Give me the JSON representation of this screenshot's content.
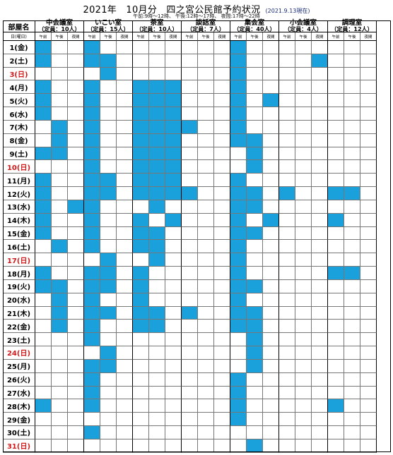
{
  "header": {
    "title": "2021年　10月分　四之宮公民館予約状況",
    "as_of": "(2021.9.13現在)",
    "time_note": "午前:9時～12時、 午後:12時～17時、 夜間:17時～22時"
  },
  "corner": {
    "label": "部屋名",
    "sub_label": "日(曜日)"
  },
  "periods": [
    "午前",
    "午後",
    "夜間"
  ],
  "rooms": [
    {
      "key": "chukaigi",
      "name": "中会議室",
      "capacity": "（定員：10人）"
    },
    {
      "key": "ikoi",
      "name": "いこい室",
      "capacity": "（定員：15人）"
    },
    {
      "key": "chashitsu",
      "name": "茶室",
      "capacity": "（定員：10人）"
    },
    {
      "key": "danwa",
      "name": "談話室",
      "capacity": "（定員：7人）"
    },
    {
      "key": "shukai",
      "name": "集会室",
      "capacity": "（定員：40人）"
    },
    {
      "key": "shokaigi",
      "name": "小会議室",
      "capacity": "（定員：4人）"
    },
    {
      "key": "chori",
      "name": "調理室",
      "capacity": "（定員：12人）"
    }
  ],
  "days": [
    {
      "label": "1(金)",
      "sunday": false
    },
    {
      "label": "2(土)",
      "sunday": false
    },
    {
      "label": "3(日)",
      "sunday": true
    },
    {
      "label": "4(月)",
      "sunday": false
    },
    {
      "label": "5(火)",
      "sunday": false
    },
    {
      "label": "6(水)",
      "sunday": false
    },
    {
      "label": "7(木)",
      "sunday": false
    },
    {
      "label": "8(金)",
      "sunday": false
    },
    {
      "label": "9(土)",
      "sunday": false
    },
    {
      "label": "10(日)",
      "sunday": true
    },
    {
      "label": "11(月)",
      "sunday": false
    },
    {
      "label": "12(火)",
      "sunday": false
    },
    {
      "label": "13(水)",
      "sunday": false
    },
    {
      "label": "14(木)",
      "sunday": false
    },
    {
      "label": "15(金)",
      "sunday": false
    },
    {
      "label": "16(土)",
      "sunday": false
    },
    {
      "label": "17(日)",
      "sunday": true
    },
    {
      "label": "18(月)",
      "sunday": false
    },
    {
      "label": "19(火)",
      "sunday": false
    },
    {
      "label": "20(水)",
      "sunday": false
    },
    {
      "label": "21(木)",
      "sunday": false
    },
    {
      "label": "22(金)",
      "sunday": false
    },
    {
      "label": "23(土)",
      "sunday": false
    },
    {
      "label": "24(日)",
      "sunday": true
    },
    {
      "label": "25(月)",
      "sunday": false
    },
    {
      "label": "26(火)",
      "sunday": false
    },
    {
      "label": "27(水)",
      "sunday": false
    },
    {
      "label": "28(木)",
      "sunday": false
    },
    {
      "label": "29(金)",
      "sunday": false
    },
    {
      "label": "30(土)",
      "sunday": false
    },
    {
      "label": "31(日)",
      "sunday": true
    }
  ],
  "booked_color": "#1aa1dc",
  "sunday_color": "#d21a1a",
  "bookings": {
    "1": {
      "chukaigi": [
        1,
        0,
        0
      ],
      "ikoi": [
        1,
        0,
        0
      ],
      "chashitsu": [
        0,
        0,
        0
      ],
      "danwa": [
        0,
        0,
        0
      ],
      "shukai": [
        1,
        0,
        0
      ],
      "shokaigi": [
        0,
        0,
        0
      ],
      "chori": [
        0,
        0,
        0
      ]
    },
    "2": {
      "chukaigi": [
        1,
        0,
        0
      ],
      "ikoi": [
        1,
        1,
        0
      ],
      "chashitsu": [
        0,
        0,
        0
      ],
      "danwa": [
        0,
        0,
        0
      ],
      "shukai": [
        1,
        0,
        0
      ],
      "shokaigi": [
        0,
        0,
        1
      ],
      "chori": [
        0,
        0,
        0
      ]
    },
    "3": {
      "chukaigi": [
        0,
        0,
        0
      ],
      "ikoi": [
        0,
        1,
        0
      ],
      "chashitsu": [
        0,
        0,
        0
      ],
      "danwa": [
        0,
        0,
        0
      ],
      "shukai": [
        1,
        0,
        0
      ],
      "shokaigi": [
        0,
        0,
        0
      ],
      "chori": [
        0,
        0,
        0
      ]
    },
    "4": {
      "chukaigi": [
        1,
        0,
        0
      ],
      "ikoi": [
        1,
        0,
        0
      ],
      "chashitsu": [
        1,
        1,
        1
      ],
      "danwa": [
        0,
        0,
        0
      ],
      "shukai": [
        1,
        0,
        0
      ],
      "shokaigi": [
        0,
        0,
        0
      ],
      "chori": [
        0,
        0,
        0
      ]
    },
    "5": {
      "chukaigi": [
        1,
        0,
        0
      ],
      "ikoi": [
        1,
        0,
        0
      ],
      "chashitsu": [
        1,
        1,
        1
      ],
      "danwa": [
        0,
        0,
        0
      ],
      "shukai": [
        1,
        0,
        1
      ],
      "shokaigi": [
        0,
        0,
        0
      ],
      "chori": [
        0,
        0,
        0
      ]
    },
    "6": {
      "chukaigi": [
        1,
        0,
        0
      ],
      "ikoi": [
        1,
        0,
        0
      ],
      "chashitsu": [
        1,
        1,
        1
      ],
      "danwa": [
        0,
        0,
        0
      ],
      "shukai": [
        1,
        0,
        0
      ],
      "shokaigi": [
        0,
        0,
        0
      ],
      "chori": [
        0,
        0,
        0
      ]
    },
    "7": {
      "chukaigi": [
        0,
        1,
        0
      ],
      "ikoi": [
        1,
        0,
        0
      ],
      "chashitsu": [
        1,
        1,
        1
      ],
      "danwa": [
        1,
        0,
        0
      ],
      "shukai": [
        1,
        0,
        0
      ],
      "shokaigi": [
        0,
        0,
        0
      ],
      "chori": [
        0,
        0,
        0
      ]
    },
    "8": {
      "chukaigi": [
        0,
        1,
        0
      ],
      "ikoi": [
        1,
        0,
        0
      ],
      "chashitsu": [
        1,
        1,
        1
      ],
      "danwa": [
        0,
        0,
        0
      ],
      "shukai": [
        1,
        1,
        0
      ],
      "shokaigi": [
        0,
        0,
        0
      ],
      "chori": [
        0,
        0,
        0
      ]
    },
    "9": {
      "chukaigi": [
        1,
        1,
        0
      ],
      "ikoi": [
        1,
        0,
        0
      ],
      "chashitsu": [
        1,
        1,
        1
      ],
      "danwa": [
        0,
        0,
        0
      ],
      "shukai": [
        0,
        1,
        0
      ],
      "shokaigi": [
        0,
        0,
        0
      ],
      "chori": [
        0,
        0,
        0
      ]
    },
    "10": {
      "chukaigi": [
        0,
        0,
        0
      ],
      "ikoi": [
        1,
        0,
        0
      ],
      "chashitsu": [
        1,
        1,
        1
      ],
      "danwa": [
        0,
        0,
        0
      ],
      "shukai": [
        0,
        1,
        0
      ],
      "shokaigi": [
        0,
        0,
        0
      ],
      "chori": [
        0,
        0,
        0
      ]
    },
    "11": {
      "chukaigi": [
        1,
        0,
        0
      ],
      "ikoi": [
        1,
        1,
        0
      ],
      "chashitsu": [
        1,
        1,
        1
      ],
      "danwa": [
        0,
        0,
        0
      ],
      "shukai": [
        1,
        0,
        0
      ],
      "shokaigi": [
        0,
        0,
        0
      ],
      "chori": [
        0,
        0,
        0
      ]
    },
    "12": {
      "chukaigi": [
        1,
        0,
        0
      ],
      "ikoi": [
        1,
        1,
        0
      ],
      "chashitsu": [
        1,
        1,
        1
      ],
      "danwa": [
        1,
        0,
        0
      ],
      "shukai": [
        1,
        1,
        0
      ],
      "shokaigi": [
        1,
        0,
        0
      ],
      "chori": [
        1,
        1,
        0
      ]
    },
    "13": {
      "chukaigi": [
        1,
        0,
        1
      ],
      "ikoi": [
        1,
        0,
        0
      ],
      "chashitsu": [
        0,
        1,
        0
      ],
      "danwa": [
        0,
        0,
        0
      ],
      "shukai": [
        1,
        1,
        0
      ],
      "shokaigi": [
        0,
        0,
        0
      ],
      "chori": [
        0,
        0,
        0
      ]
    },
    "14": {
      "chukaigi": [
        1,
        0,
        0
      ],
      "ikoi": [
        1,
        0,
        0
      ],
      "chashitsu": [
        1,
        0,
        1
      ],
      "danwa": [
        0,
        0,
        0
      ],
      "shukai": [
        1,
        0,
        1
      ],
      "shokaigi": [
        0,
        0,
        0
      ],
      "chori": [
        1,
        0,
        0
      ]
    },
    "15": {
      "chukaigi": [
        1,
        0,
        0
      ],
      "ikoi": [
        1,
        0,
        0
      ],
      "chashitsu": [
        1,
        1,
        0
      ],
      "danwa": [
        0,
        0,
        0
      ],
      "shukai": [
        1,
        1,
        0
      ],
      "shokaigi": [
        0,
        0,
        0
      ],
      "chori": [
        0,
        0,
        0
      ]
    },
    "16": {
      "chukaigi": [
        0,
        1,
        0
      ],
      "ikoi": [
        1,
        0,
        0
      ],
      "chashitsu": [
        1,
        1,
        0
      ],
      "danwa": [
        0,
        0,
        0
      ],
      "shukai": [
        1,
        0,
        0
      ],
      "shokaigi": [
        0,
        0,
        0
      ],
      "chori": [
        0,
        0,
        0
      ]
    },
    "17": {
      "chukaigi": [
        0,
        0,
        0
      ],
      "ikoi": [
        0,
        1,
        0
      ],
      "chashitsu": [
        0,
        1,
        0
      ],
      "danwa": [
        0,
        0,
        0
      ],
      "shukai": [
        1,
        0,
        0
      ],
      "shokaigi": [
        0,
        0,
        0
      ],
      "chori": [
        0,
        0,
        0
      ]
    },
    "18": {
      "chukaigi": [
        1,
        0,
        0
      ],
      "ikoi": [
        1,
        1,
        0
      ],
      "chashitsu": [
        1,
        0,
        0
      ],
      "danwa": [
        0,
        0,
        0
      ],
      "shukai": [
        1,
        0,
        0
      ],
      "shokaigi": [
        0,
        0,
        0
      ],
      "chori": [
        1,
        1,
        0
      ]
    },
    "19": {
      "chukaigi": [
        1,
        1,
        0
      ],
      "ikoi": [
        1,
        1,
        0
      ],
      "chashitsu": [
        1,
        0,
        0
      ],
      "danwa": [
        0,
        0,
        0
      ],
      "shukai": [
        1,
        1,
        0
      ],
      "shokaigi": [
        0,
        0,
        0
      ],
      "chori": [
        0,
        0,
        0
      ]
    },
    "20": {
      "chukaigi": [
        0,
        1,
        0
      ],
      "ikoi": [
        1,
        0,
        0
      ],
      "chashitsu": [
        1,
        0,
        0
      ],
      "danwa": [
        0,
        0,
        0
      ],
      "shukai": [
        1,
        0,
        0
      ],
      "shokaigi": [
        0,
        0,
        0
      ],
      "chori": [
        0,
        0,
        0
      ]
    },
    "21": {
      "chukaigi": [
        0,
        1,
        0
      ],
      "ikoi": [
        1,
        1,
        0
      ],
      "chashitsu": [
        1,
        1,
        0
      ],
      "danwa": [
        1,
        0,
        0
      ],
      "shukai": [
        1,
        1,
        0
      ],
      "shokaigi": [
        0,
        0,
        0
      ],
      "chori": [
        0,
        0,
        0
      ]
    },
    "22": {
      "chukaigi": [
        0,
        1,
        0
      ],
      "ikoi": [
        1,
        0,
        0
      ],
      "chashitsu": [
        1,
        1,
        0
      ],
      "danwa": [
        0,
        0,
        0
      ],
      "shukai": [
        1,
        1,
        0
      ],
      "shokaigi": [
        0,
        0,
        0
      ],
      "chori": [
        0,
        0,
        0
      ]
    },
    "23": {
      "chukaigi": [
        0,
        0,
        0
      ],
      "ikoi": [
        1,
        0,
        0
      ],
      "chashitsu": [
        0,
        0,
        0
      ],
      "danwa": [
        0,
        0,
        0
      ],
      "shukai": [
        0,
        1,
        0
      ],
      "shokaigi": [
        0,
        0,
        0
      ],
      "chori": [
        0,
        0,
        0
      ]
    },
    "24": {
      "chukaigi": [
        0,
        0,
        0
      ],
      "ikoi": [
        0,
        1,
        0
      ],
      "chashitsu": [
        0,
        0,
        0
      ],
      "danwa": [
        0,
        0,
        0
      ],
      "shukai": [
        0,
        1,
        0
      ],
      "shokaigi": [
        0,
        0,
        0
      ],
      "chori": [
        0,
        0,
        0
      ]
    },
    "25": {
      "chukaigi": [
        0,
        0,
        0
      ],
      "ikoi": [
        1,
        1,
        0
      ],
      "chashitsu": [
        0,
        0,
        0
      ],
      "danwa": [
        0,
        0,
        0
      ],
      "shukai": [
        0,
        1,
        0
      ],
      "shokaigi": [
        0,
        0,
        0
      ],
      "chori": [
        0,
        0,
        0
      ]
    },
    "26": {
      "chukaigi": [
        0,
        0,
        0
      ],
      "ikoi": [
        1,
        0,
        0
      ],
      "chashitsu": [
        0,
        0,
        0
      ],
      "danwa": [
        0,
        0,
        0
      ],
      "shukai": [
        1,
        0,
        0
      ],
      "shokaigi": [
        0,
        0,
        0
      ],
      "chori": [
        0,
        0,
        0
      ]
    },
    "27": {
      "chukaigi": [
        0,
        0,
        0
      ],
      "ikoi": [
        1,
        0,
        0
      ],
      "chashitsu": [
        0,
        0,
        0
      ],
      "danwa": [
        0,
        0,
        0
      ],
      "shukai": [
        1,
        0,
        0
      ],
      "shokaigi": [
        0,
        0,
        0
      ],
      "chori": [
        0,
        0,
        0
      ]
    },
    "28": {
      "chukaigi": [
        1,
        0,
        0
      ],
      "ikoi": [
        1,
        0,
        0
      ],
      "chashitsu": [
        0,
        0,
        0
      ],
      "danwa": [
        0,
        0,
        0
      ],
      "shukai": [
        1,
        0,
        0
      ],
      "shokaigi": [
        0,
        0,
        0
      ],
      "chori": [
        1,
        0,
        0
      ]
    },
    "29": {
      "chukaigi": [
        0,
        0,
        0
      ],
      "ikoi": [
        0,
        0,
        0
      ],
      "chashitsu": [
        0,
        0,
        0
      ],
      "danwa": [
        0,
        0,
        0
      ],
      "shukai": [
        1,
        0,
        0
      ],
      "shokaigi": [
        0,
        0,
        0
      ],
      "chori": [
        0,
        0,
        0
      ]
    },
    "30": {
      "chukaigi": [
        0,
        0,
        0
      ],
      "ikoi": [
        1,
        0,
        0
      ],
      "chashitsu": [
        0,
        0,
        0
      ],
      "danwa": [
        0,
        0,
        0
      ],
      "shukai": [
        0,
        0,
        0
      ],
      "shokaigi": [
        0,
        0,
        0
      ],
      "chori": [
        0,
        0,
        0
      ]
    },
    "31": {
      "chukaigi": [
        0,
        0,
        0
      ],
      "ikoi": [
        0,
        0,
        0
      ],
      "chashitsu": [
        0,
        0,
        0
      ],
      "danwa": [
        0,
        0,
        0
      ],
      "shukai": [
        0,
        1,
        0
      ],
      "shokaigi": [
        0,
        0,
        0
      ],
      "chori": [
        0,
        0,
        0
      ]
    }
  }
}
